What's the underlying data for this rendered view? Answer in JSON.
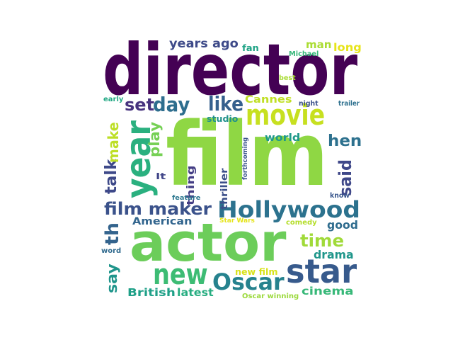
{
  "word_cloud": {
    "words": [
      {
        "text": "director",
        "color": "#440154"
      },
      {
        "text": "film",
        "color": "#8fd744"
      },
      {
        "text": "actor",
        "color": "#6ccd5a"
      },
      {
        "text": "movie",
        "color": "#c7e020"
      },
      {
        "text": "Hollywood",
        "color": "#2c728e"
      },
      {
        "text": "star",
        "color": "#375a8c"
      },
      {
        "text": "year",
        "color": "#2ab07f"
      },
      {
        "text": "new",
        "color": "#3dbc74"
      },
      {
        "text": "Oscar",
        "color": "#26828e"
      },
      {
        "text": "film maker",
        "color": "#3b528b"
      },
      {
        "text": "like",
        "color": "#355f8d"
      },
      {
        "text": "set",
        "color": "#46327e"
      },
      {
        "text": "day",
        "color": "#2e6e8e"
      },
      {
        "text": "hen",
        "color": "#2d718e"
      },
      {
        "text": "said",
        "color": "#3f4889"
      },
      {
        "text": "time",
        "color": "#a0da39"
      },
      {
        "text": "talk",
        "color": "#3e4989"
      },
      {
        "text": "th",
        "color": "#33638d"
      },
      {
        "text": "make",
        "color": "#bddf26"
      },
      {
        "text": "play",
        "color": "#75d054"
      },
      {
        "text": "say",
        "color": "#1f958b"
      },
      {
        "text": "years ago",
        "color": "#3e4a89"
      },
      {
        "text": "drama",
        "color": "#1f968b"
      },
      {
        "text": "good",
        "color": "#2f6c8e"
      },
      {
        "text": "cinema",
        "color": "#37b878"
      },
      {
        "text": "latest",
        "color": "#27ad81"
      },
      {
        "text": "British",
        "color": "#1fa088"
      },
      {
        "text": "American",
        "color": "#32658e"
      },
      {
        "text": "world",
        "color": "#1f998a"
      },
      {
        "text": "Cannes",
        "color": "#c0df25"
      },
      {
        "text": "thing",
        "color": "#433d84"
      },
      {
        "text": "thriller",
        "color": "#3c4f8a"
      },
      {
        "text": "man",
        "color": "#aadc32"
      },
      {
        "text": "long",
        "color": "#e7e419"
      },
      {
        "text": "studio",
        "color": "#21918c"
      },
      {
        "text": "fan",
        "color": "#20a386"
      },
      {
        "text": "It",
        "color": "#404588"
      },
      {
        "text": "new film",
        "color": "#d8e219"
      },
      {
        "text": "Oscar winning",
        "color": "#9bd93c"
      },
      {
        "text": "Michael",
        "color": "#35b779"
      },
      {
        "text": "forthcoming",
        "color": "#3a548c"
      },
      {
        "text": "feature",
        "color": "#2a768e"
      },
      {
        "text": "Star Wars",
        "color": "#e5e419"
      },
      {
        "text": "comedy",
        "color": "#b5de2b"
      },
      {
        "text": "early",
        "color": "#22a884"
      },
      {
        "text": "night",
        "color": "#3b518b"
      },
      {
        "text": "trailer",
        "color": "#2d708e"
      },
      {
        "text": "best",
        "color": "#a8db34"
      },
      {
        "text": "know",
        "color": "#39568c"
      },
      {
        "text": "word",
        "color": "#306a8e"
      }
    ]
  }
}
